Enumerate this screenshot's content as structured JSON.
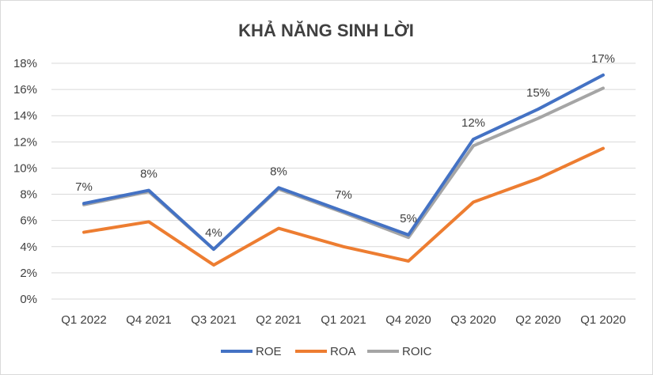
{
  "chart_data": {
    "type": "line",
    "title": "KHẢ NĂNG SINH LỜI",
    "xlabel": "",
    "ylabel": "",
    "categories": [
      "Q1 2022",
      "Q4 2021",
      "Q3 2021",
      "Q2 2021",
      "Q1 2021",
      "Q4 2020",
      "Q3 2020",
      "Q2 2020",
      "Q1 2020"
    ],
    "ylim": [
      0,
      18
    ],
    "yticks": [
      "0%",
      "2%",
      "4%",
      "6%",
      "8%",
      "10%",
      "12%",
      "14%",
      "16%",
      "18%"
    ],
    "grid": true,
    "legend_position": "bottom",
    "series": [
      {
        "name": "ROE",
        "color": "#4472C4",
        "values": [
          7.3,
          8.3,
          3.8,
          8.5,
          6.7,
          4.9,
          12.2,
          14.5,
          17.1
        ]
      },
      {
        "name": "ROA",
        "color": "#ED7D31",
        "values": [
          5.1,
          5.9,
          2.6,
          5.4,
          4.0,
          2.9,
          7.4,
          9.2,
          11.5
        ]
      },
      {
        "name": "ROIC",
        "color": "#A5A5A5",
        "values": [
          7.2,
          8.2,
          3.8,
          8.4,
          6.6,
          4.7,
          11.7,
          13.8,
          16.1
        ]
      }
    ],
    "data_labels": [
      "7%",
      "8%",
      "4%",
      "8%",
      "7%",
      "5%",
      "12%",
      "15%",
      "17%"
    ]
  }
}
